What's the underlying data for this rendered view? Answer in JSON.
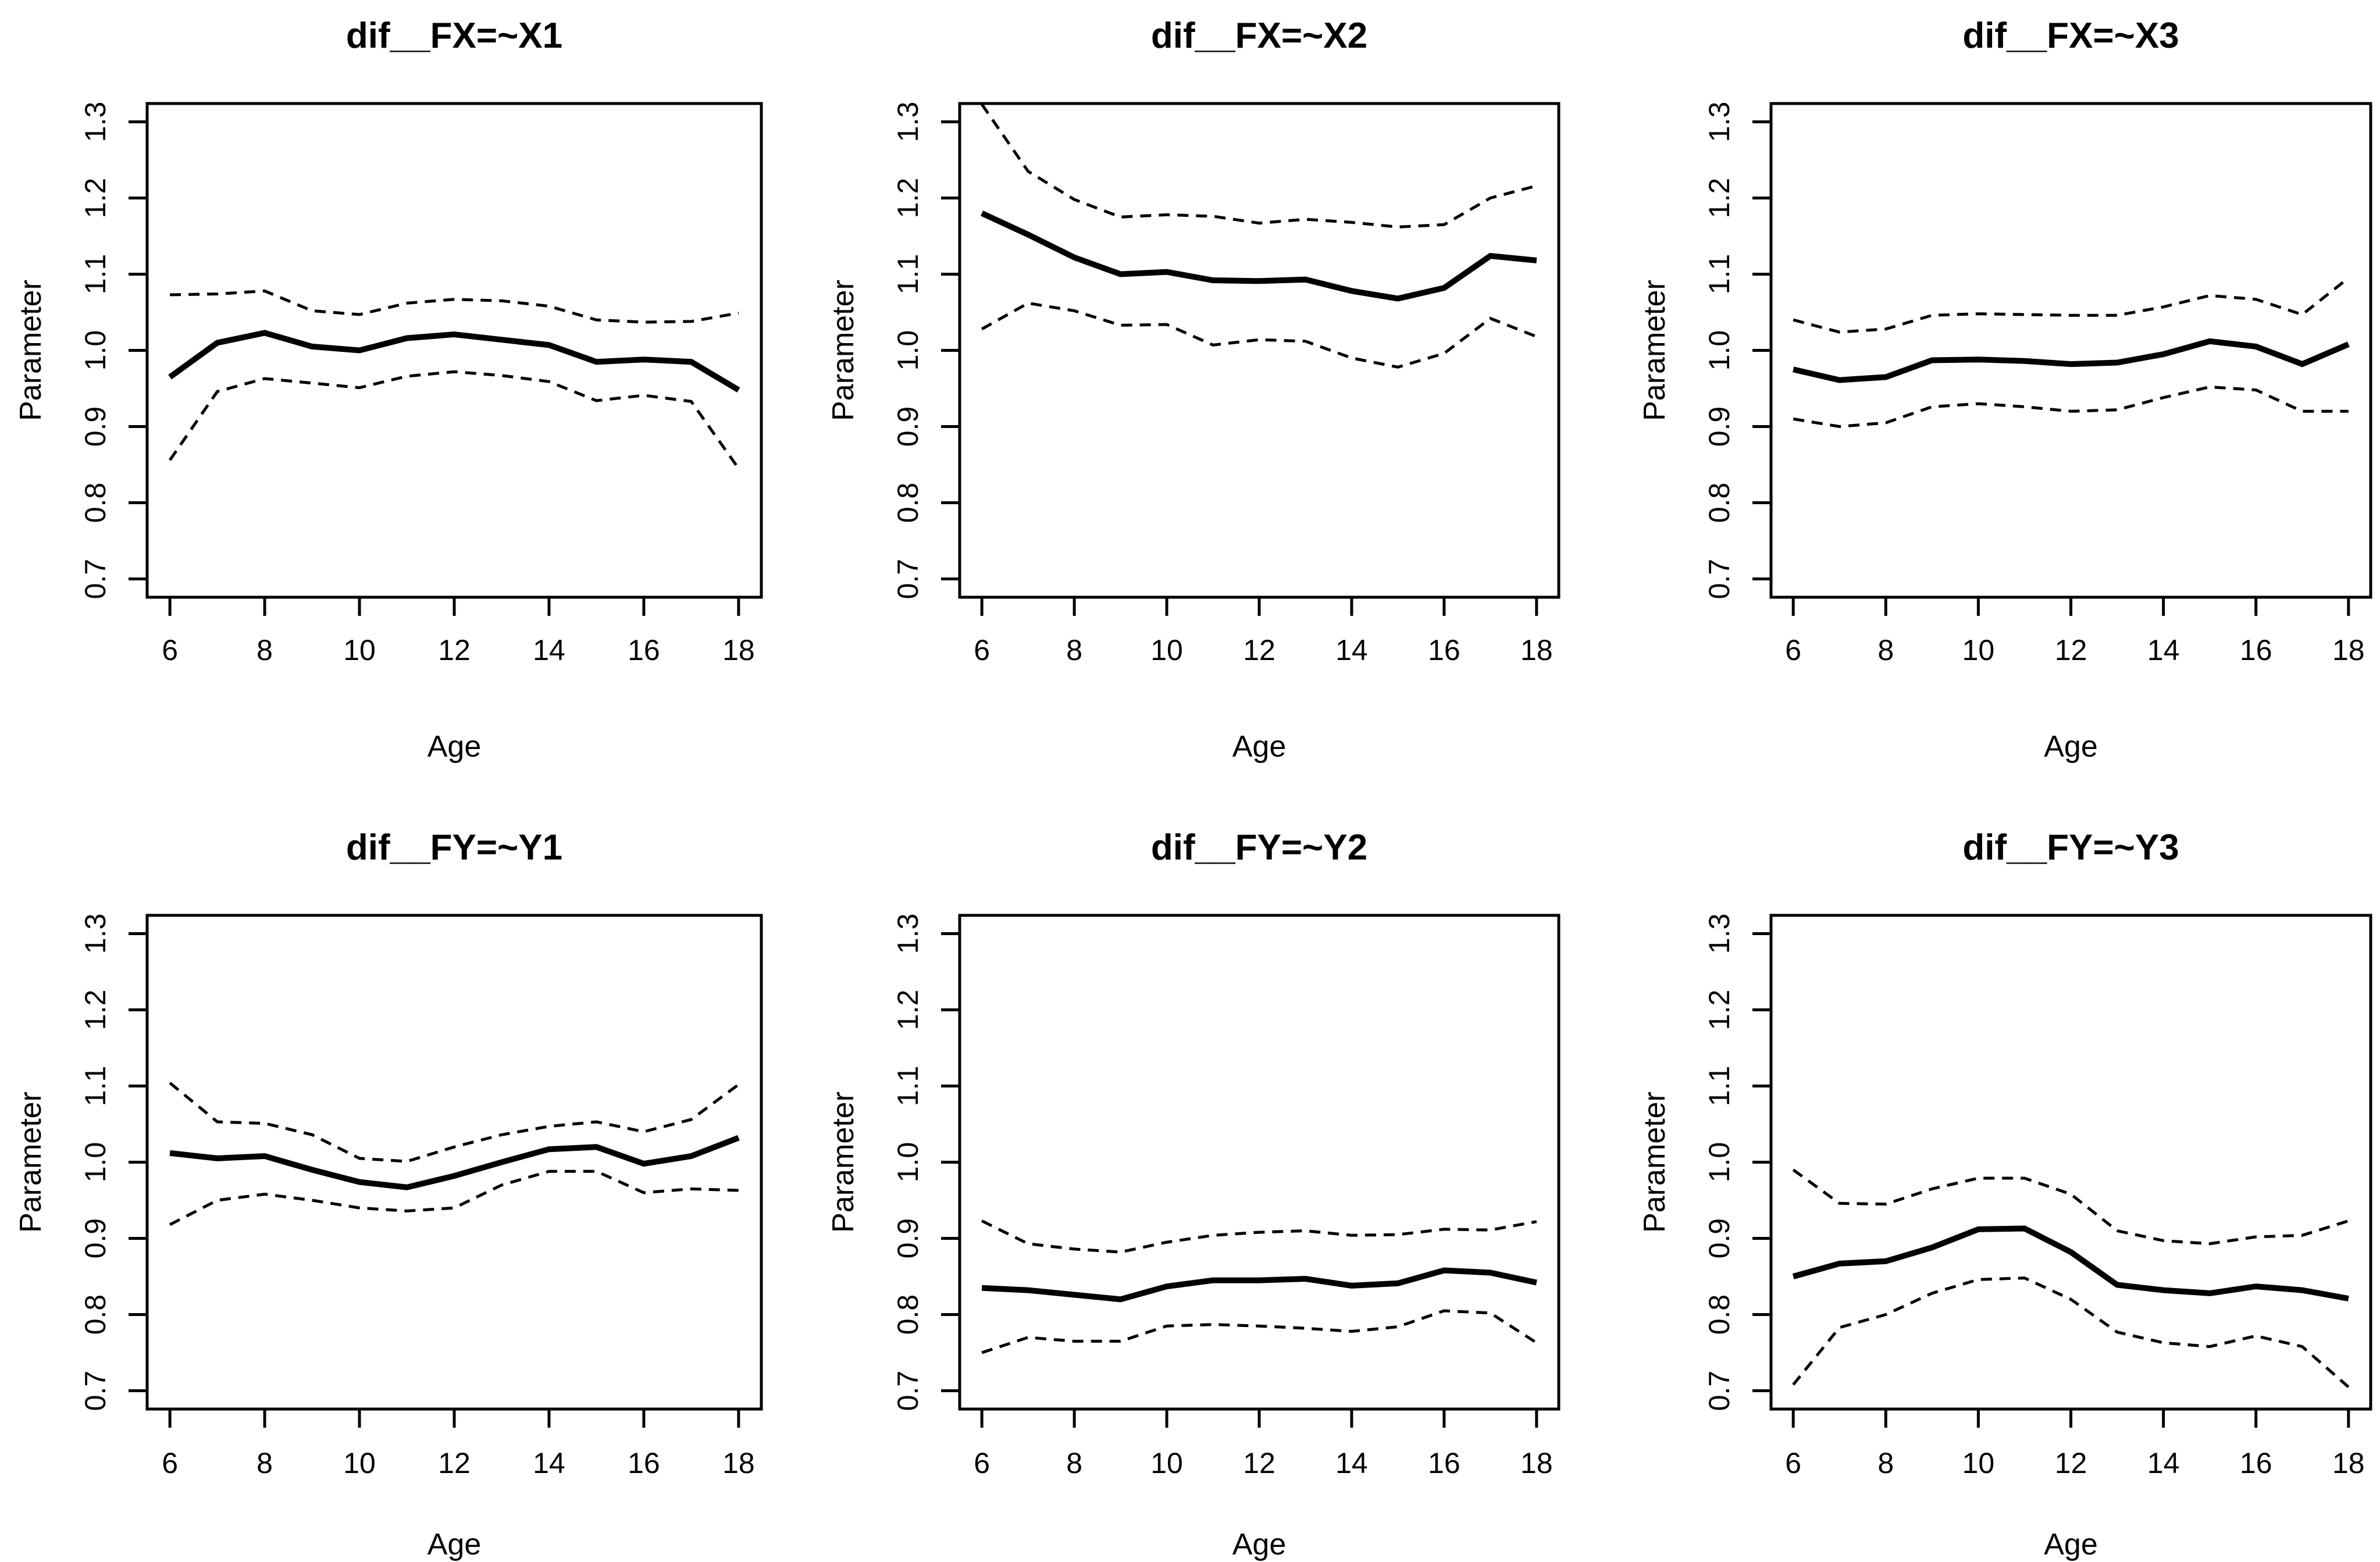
{
  "figure": {
    "background": "#ffffff",
    "foreground": "#000000",
    "layout": "2x3 grid of R base-graphics line plots with dashed confidence bands"
  },
  "chart_data": [
    {
      "type": "line",
      "title": "dif__FX=~X1",
      "xlabel": "Age",
      "ylabel": "Parameter",
      "x": [
        6,
        7,
        8,
        9,
        10,
        11,
        12,
        13,
        14,
        15,
        16,
        17,
        18
      ],
      "xlim": [
        5.52,
        18.48
      ],
      "ylim": [
        0.676,
        1.324
      ],
      "xticks": [
        6,
        8,
        10,
        12,
        14,
        16,
        18
      ],
      "xtick_labels": [
        "6",
        "8",
        "10",
        "12",
        "14",
        "16",
        "18"
      ],
      "yticks": [
        0.7,
        0.8,
        0.9,
        1.0,
        1.1,
        1.2,
        1.3
      ],
      "ytick_labels": [
        "0.7",
        "0.8",
        "0.9",
        "1.0",
        "1.1",
        "1.2",
        "1.3"
      ],
      "grid": false,
      "series": [
        {
          "name": "estimate",
          "line": "solid",
          "values": [
            0.965,
            1.01,
            1.023,
            1.005,
            1.0,
            1.016,
            1.021,
            1.014,
            1.007,
            0.985,
            0.988,
            0.985,
            0.948
          ]
        },
        {
          "name": "upper-confidence-band",
          "line": "dashed",
          "values": [
            1.073,
            1.074,
            1.078,
            1.052,
            1.047,
            1.062,
            1.067,
            1.065,
            1.058,
            1.04,
            1.037,
            1.038,
            1.049
          ]
        },
        {
          "name": "lower-confidence-band",
          "line": "dashed",
          "values": [
            0.856,
            0.946,
            0.963,
            0.957,
            0.951,
            0.966,
            0.972,
            0.967,
            0.959,
            0.934,
            0.941,
            0.933,
            0.845
          ]
        }
      ]
    },
    {
      "type": "line",
      "title": "dif__FX=~X2",
      "xlabel": "Age",
      "ylabel": "Parameter",
      "x": [
        6,
        7,
        8,
        9,
        10,
        11,
        12,
        13,
        14,
        15,
        16,
        17,
        18
      ],
      "xlim": [
        5.52,
        18.48
      ],
      "ylim": [
        0.676,
        1.324
      ],
      "xticks": [
        6,
        8,
        10,
        12,
        14,
        16,
        18
      ],
      "xtick_labels": [
        "6",
        "8",
        "10",
        "12",
        "14",
        "16",
        "18"
      ],
      "yticks": [
        0.7,
        0.8,
        0.9,
        1.0,
        1.1,
        1.2,
        1.3
      ],
      "ytick_labels": [
        "0.7",
        "0.8",
        "0.9",
        "1.0",
        "1.1",
        "1.2",
        "1.3"
      ],
      "grid": false,
      "series": [
        {
          "name": "estimate",
          "line": "solid",
          "values": [
            1.18,
            1.152,
            1.122,
            1.1,
            1.103,
            1.092,
            1.091,
            1.093,
            1.078,
            1.068,
            1.082,
            1.124,
            1.118
          ]
        },
        {
          "name": "upper-confidence-band",
          "line": "dashed",
          "values": [
            1.323,
            1.235,
            1.198,
            1.175,
            1.178,
            1.176,
            1.167,
            1.172,
            1.168,
            1.162,
            1.165,
            1.2,
            1.216
          ]
        },
        {
          "name": "lower-confidence-band",
          "line": "dashed",
          "values": [
            1.028,
            1.062,
            1.052,
            1.033,
            1.034,
            1.007,
            1.014,
            1.012,
            0.99,
            0.978,
            0.996,
            1.042,
            1.018
          ]
        }
      ]
    },
    {
      "type": "line",
      "title": "dif__FX=~X3",
      "xlabel": "Age",
      "ylabel": "Parameter",
      "x": [
        6,
        7,
        8,
        9,
        10,
        11,
        12,
        13,
        14,
        15,
        16,
        17,
        18
      ],
      "xlim": [
        5.52,
        18.48
      ],
      "ylim": [
        0.676,
        1.324
      ],
      "xticks": [
        6,
        8,
        10,
        12,
        14,
        16,
        18
      ],
      "xtick_labels": [
        "6",
        "8",
        "10",
        "12",
        "14",
        "16",
        "18"
      ],
      "yticks": [
        0.7,
        0.8,
        0.9,
        1.0,
        1.1,
        1.2,
        1.3
      ],
      "ytick_labels": [
        "0.7",
        "0.8",
        "0.9",
        "1.0",
        "1.1",
        "1.2",
        "1.3"
      ],
      "grid": false,
      "series": [
        {
          "name": "estimate",
          "line": "solid",
          "values": [
            0.975,
            0.961,
            0.965,
            0.987,
            0.988,
            0.986,
            0.982,
            0.984,
            0.995,
            1.012,
            1.005,
            0.982,
            1.008
          ]
        },
        {
          "name": "upper-confidence-band",
          "line": "dashed",
          "values": [
            1.04,
            1.024,
            1.028,
            1.046,
            1.048,
            1.047,
            1.046,
            1.046,
            1.057,
            1.072,
            1.067,
            1.047,
            1.095
          ]
        },
        {
          "name": "lower-confidence-band",
          "line": "dashed",
          "values": [
            0.91,
            0.9,
            0.905,
            0.926,
            0.93,
            0.926,
            0.92,
            0.922,
            0.938,
            0.952,
            0.948,
            0.92,
            0.92
          ]
        }
      ]
    },
    {
      "type": "line",
      "title": "dif__FY=~Y1",
      "xlabel": "Age",
      "ylabel": "Parameter",
      "x": [
        6,
        7,
        8,
        9,
        10,
        11,
        12,
        13,
        14,
        15,
        16,
        17,
        18
      ],
      "xlim": [
        5.52,
        18.48
      ],
      "ylim": [
        0.676,
        1.324
      ],
      "xticks": [
        6,
        8,
        10,
        12,
        14,
        16,
        18
      ],
      "xtick_labels": [
        "6",
        "8",
        "10",
        "12",
        "14",
        "16",
        "18"
      ],
      "yticks": [
        0.7,
        0.8,
        0.9,
        1.0,
        1.1,
        1.2,
        1.3
      ],
      "ytick_labels": [
        "0.7",
        "0.8",
        "0.9",
        "1.0",
        "1.1",
        "1.2",
        "1.3"
      ],
      "grid": false,
      "series": [
        {
          "name": "estimate",
          "line": "solid",
          "values": [
            1.012,
            1.005,
            1.008,
            0.99,
            0.974,
            0.967,
            0.982,
            1.0,
            1.017,
            1.02,
            0.998,
            1.008,
            1.032
          ]
        },
        {
          "name": "upper-confidence-band",
          "line": "dashed",
          "values": [
            1.104,
            1.053,
            1.051,
            1.036,
            1.005,
            1.001,
            1.02,
            1.036,
            1.047,
            1.053,
            1.04,
            1.056,
            1.102
          ]
        },
        {
          "name": "lower-confidence-band",
          "line": "dashed",
          "values": [
            0.918,
            0.95,
            0.958,
            0.95,
            0.94,
            0.936,
            0.94,
            0.97,
            0.988,
            0.988,
            0.96,
            0.965,
            0.963
          ]
        }
      ]
    },
    {
      "type": "line",
      "title": "dif__FY=~Y2",
      "xlabel": "Age",
      "ylabel": "Parameter",
      "x": [
        6,
        7,
        8,
        9,
        10,
        11,
        12,
        13,
        14,
        15,
        16,
        17,
        18
      ],
      "xlim": [
        5.52,
        18.48
      ],
      "ylim": [
        0.676,
        1.324
      ],
      "xticks": [
        6,
        8,
        10,
        12,
        14,
        16,
        18
      ],
      "xtick_labels": [
        "6",
        "8",
        "10",
        "12",
        "14",
        "16",
        "18"
      ],
      "yticks": [
        0.7,
        0.8,
        0.9,
        1.0,
        1.1,
        1.2,
        1.3
      ],
      "ytick_labels": [
        "0.7",
        "0.8",
        "0.9",
        "1.0",
        "1.1",
        "1.2",
        "1.3"
      ],
      "grid": false,
      "series": [
        {
          "name": "estimate",
          "line": "solid",
          "values": [
            0.835,
            0.832,
            0.826,
            0.82,
            0.837,
            0.845,
            0.845,
            0.847,
            0.838,
            0.841,
            0.858,
            0.855,
            0.842
          ]
        },
        {
          "name": "upper-confidence-band",
          "line": "dashed",
          "values": [
            0.923,
            0.893,
            0.886,
            0.882,
            0.895,
            0.904,
            0.908,
            0.91,
            0.904,
            0.905,
            0.912,
            0.911,
            0.922
          ]
        },
        {
          "name": "lower-confidence-band",
          "line": "dashed",
          "values": [
            0.75,
            0.77,
            0.765,
            0.765,
            0.785,
            0.787,
            0.785,
            0.782,
            0.778,
            0.784,
            0.805,
            0.802,
            0.763
          ]
        }
      ]
    },
    {
      "type": "line",
      "title": "dif__FY=~Y3",
      "xlabel": "Age",
      "ylabel": "Parameter",
      "x": [
        6,
        7,
        8,
        9,
        10,
        11,
        12,
        13,
        14,
        15,
        16,
        17,
        18
      ],
      "xlim": [
        5.52,
        18.48
      ],
      "ylim": [
        0.676,
        1.324
      ],
      "xticks": [
        6,
        8,
        10,
        12,
        14,
        16,
        18
      ],
      "xtick_labels": [
        "6",
        "8",
        "10",
        "12",
        "14",
        "16",
        "18"
      ],
      "yticks": [
        0.7,
        0.8,
        0.9,
        1.0,
        1.1,
        1.2,
        1.3
      ],
      "ytick_labels": [
        "0.7",
        "0.8",
        "0.9",
        "1.0",
        "1.1",
        "1.2",
        "1.3"
      ],
      "grid": false,
      "series": [
        {
          "name": "estimate",
          "line": "solid",
          "values": [
            0.85,
            0.867,
            0.87,
            0.888,
            0.912,
            0.913,
            0.882,
            0.839,
            0.832,
            0.828,
            0.837,
            0.832,
            0.821
          ]
        },
        {
          "name": "upper-confidence-band",
          "line": "dashed",
          "values": [
            0.99,
            0.946,
            0.945,
            0.965,
            0.979,
            0.979,
            0.958,
            0.91,
            0.897,
            0.893,
            0.902,
            0.904,
            0.923
          ]
        },
        {
          "name": "lower-confidence-band",
          "line": "dashed",
          "values": [
            0.708,
            0.783,
            0.8,
            0.828,
            0.846,
            0.848,
            0.82,
            0.777,
            0.763,
            0.758,
            0.772,
            0.758,
            0.705
          ]
        }
      ]
    }
  ]
}
